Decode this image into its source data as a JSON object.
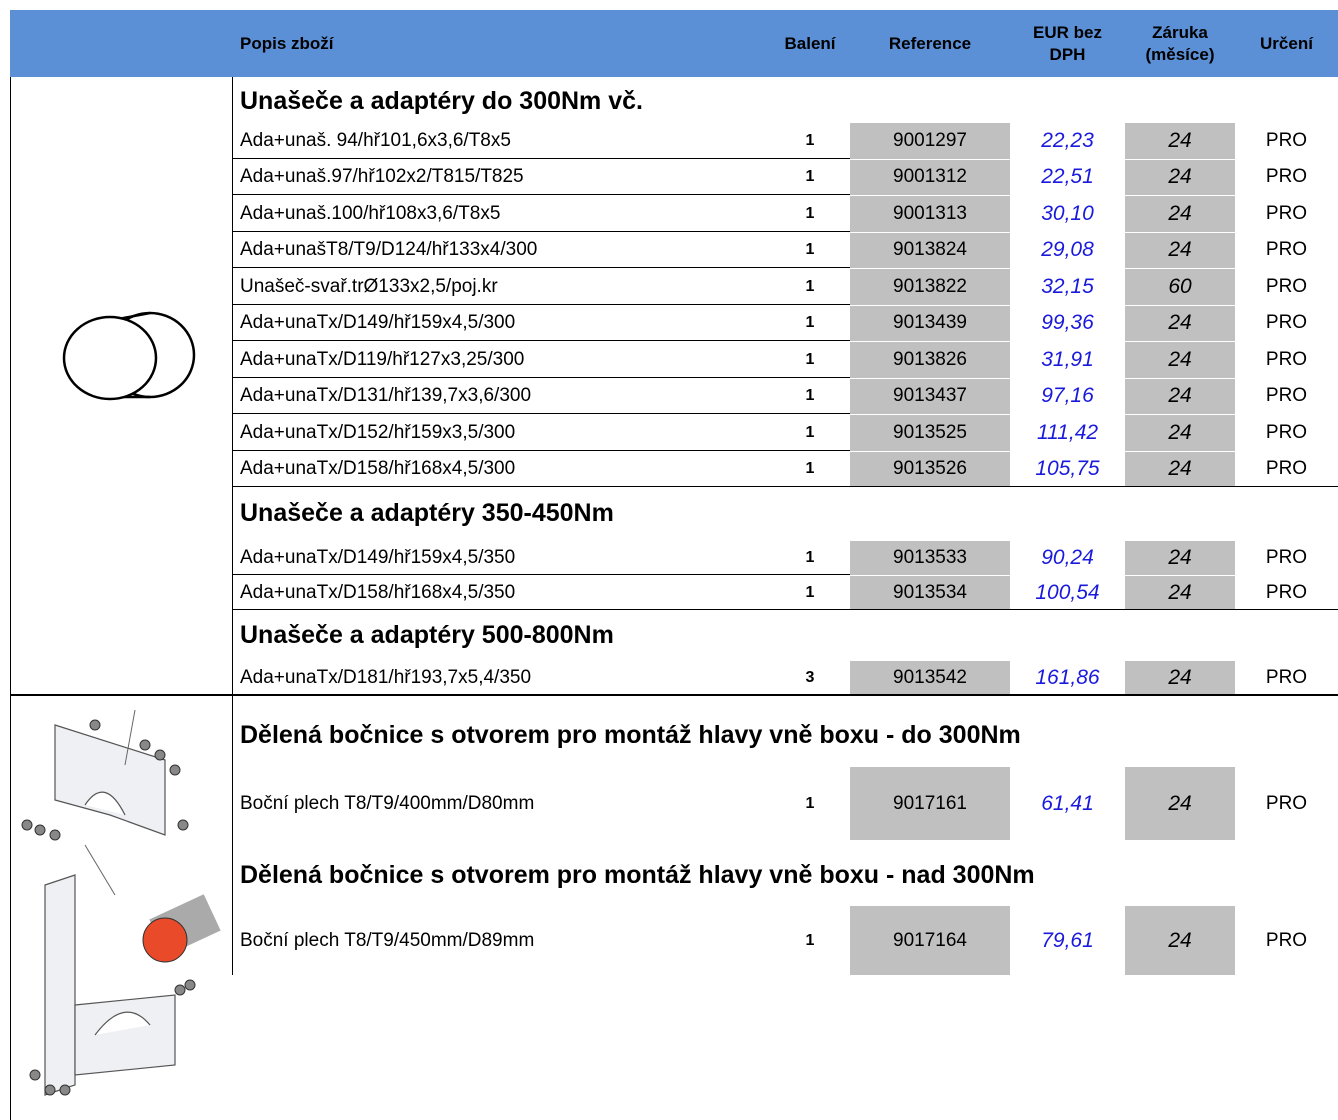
{
  "header": {
    "columns": [
      "Popis zboží",
      "Balení",
      "Reference",
      "EUR bez DPH",
      "Záruka (měsíce)",
      "Určení"
    ]
  },
  "sections": [
    {
      "title": "Unašeče a adaptéry do 300Nm vč.",
      "rows": [
        [
          "Ada+unaš. 94/hř101,6x3,6/T8x5",
          "1",
          "9001297",
          "22,23",
          "24",
          "PRO"
        ],
        [
          "Ada+unaš.97/hř102x2/T815/T825",
          "1",
          "9001312",
          "22,51",
          "24",
          "PRO"
        ],
        [
          "Ada+unaš.100/hř108x3,6/T8x5",
          "1",
          "9001313",
          "30,10",
          "24",
          "PRO"
        ],
        [
          "Ada+unašT8/T9/D124/hř133x4/300",
          "1",
          "9013824",
          "29,08",
          "24",
          "PRO"
        ],
        [
          "Unašeč-svař.trØ133x2,5/poj.kr",
          "1",
          "9013822",
          "32,15",
          "60",
          "PRO"
        ],
        [
          "Ada+unaTx/D149/hř159x4,5/300",
          "1",
          "9013439",
          "99,36",
          "24",
          "PRO"
        ],
        [
          "Ada+unaTx/D119/hř127x3,25/300",
          "1",
          "9013826",
          "31,91",
          "24",
          "PRO"
        ],
        [
          "Ada+unaTx/D131/hř139,7x3,6/300",
          "1",
          "9013437",
          "97,16",
          "24",
          "PRO"
        ],
        [
          "Ada+unaTx/D152/hř159x3,5/300",
          "1",
          "9013525",
          "111,42",
          "24",
          "PRO"
        ],
        [
          "Ada+unaTx/D158/hř168x4,5/300",
          "1",
          "9013526",
          "105,75",
          "24",
          "PRO"
        ]
      ]
    },
    {
      "title": "Unašeče a adaptéry 350-450Nm",
      "rows": [
        [
          "Ada+unaTx/D149/hř159x4,5/350",
          "1",
          "9013533",
          "90,24",
          "24",
          "PRO"
        ],
        [
          "Ada+unaTx/D158/hř168x4,5/350",
          "1",
          "9013534",
          "100,54",
          "24",
          "PRO"
        ]
      ]
    },
    {
      "title": "Unašeče a adaptéry 500-800Nm",
      "rows": [
        [
          "Ada+unaTx/D181/hř193,7x5,4/350",
          "3",
          "9013542",
          "161,86",
          "24",
          "PRO"
        ]
      ]
    },
    {
      "title": "Dělená bočnice s otvorem pro montáž hlavy vně boxu - do 300Nm",
      "rows": [
        [
          "Boční plech T8/T9/400mm/D80mm",
          "1",
          "9017161",
          "61,41",
          "24",
          "PRO"
        ]
      ]
    },
    {
      "title": "Dělená bočnice s otvorem pro montáž hlavy vně boxu - nad 300Nm",
      "rows": [
        [
          "Boční plech T8/T9/450mm/D89mm",
          "1",
          "9017164",
          "79,61",
          "24",
          "PRO"
        ]
      ]
    }
  ]
}
